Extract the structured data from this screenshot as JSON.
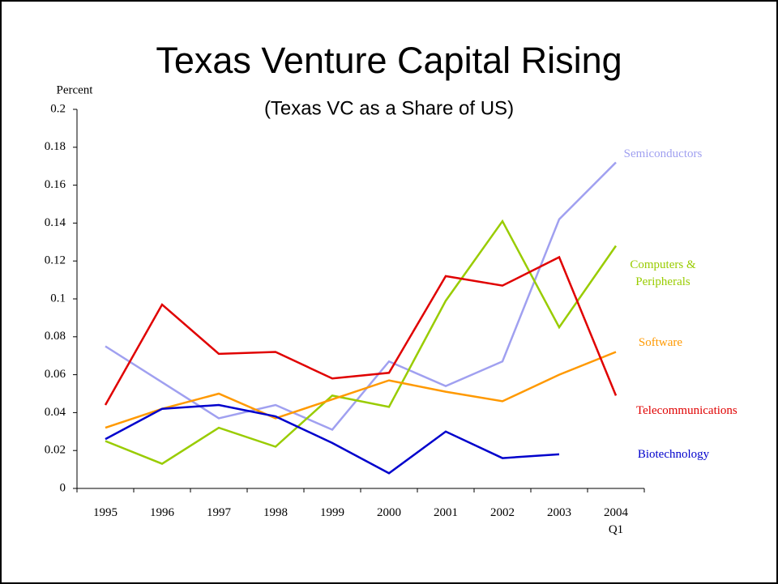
{
  "chart_data": {
    "type": "line",
    "title": "Texas Venture Capital Rising",
    "subtitle": "(Texas VC as a Share of US)",
    "y_label": "Percent",
    "categories": [
      "1995",
      "1996",
      "1997",
      "1998",
      "1999",
      "2000",
      "2001",
      "2002",
      "2003",
      "2004 Q1"
    ],
    "ylim": [
      0,
      0.2
    ],
    "yticks": [
      0,
      0.02,
      0.04,
      0.06,
      0.08,
      0.1,
      0.12,
      0.14,
      0.16,
      0.18,
      0.2
    ],
    "grid": false,
    "series": [
      {
        "name": "Semiconductors",
        "color": "#a0a0f0",
        "values": [
          0.075,
          0.056,
          0.037,
          0.044,
          0.031,
          0.067,
          0.054,
          0.067,
          0.142,
          0.172
        ]
      },
      {
        "name": "Computers & Peripherals",
        "color": "#99cc00",
        "values": [
          0.025,
          0.013,
          0.032,
          0.022,
          0.049,
          0.043,
          0.099,
          0.141,
          0.085,
          0.128
        ]
      },
      {
        "name": "Software",
        "color": "#ff9900",
        "values": [
          0.032,
          0.042,
          0.05,
          0.037,
          0.047,
          0.057,
          0.051,
          0.046,
          0.06,
          0.072
        ]
      },
      {
        "name": "Telecommunications",
        "color": "#e00000",
        "values": [
          0.044,
          0.097,
          0.071,
          0.072,
          0.058,
          0.061,
          0.112,
          0.107,
          0.122,
          0.049
        ]
      },
      {
        "name": "Biotechnology",
        "color": "#0000cc",
        "values": [
          0.026,
          0.042,
          0.044,
          0.038,
          0.024,
          0.008,
          0.03,
          0.016,
          0.018,
          null
        ]
      }
    ]
  }
}
